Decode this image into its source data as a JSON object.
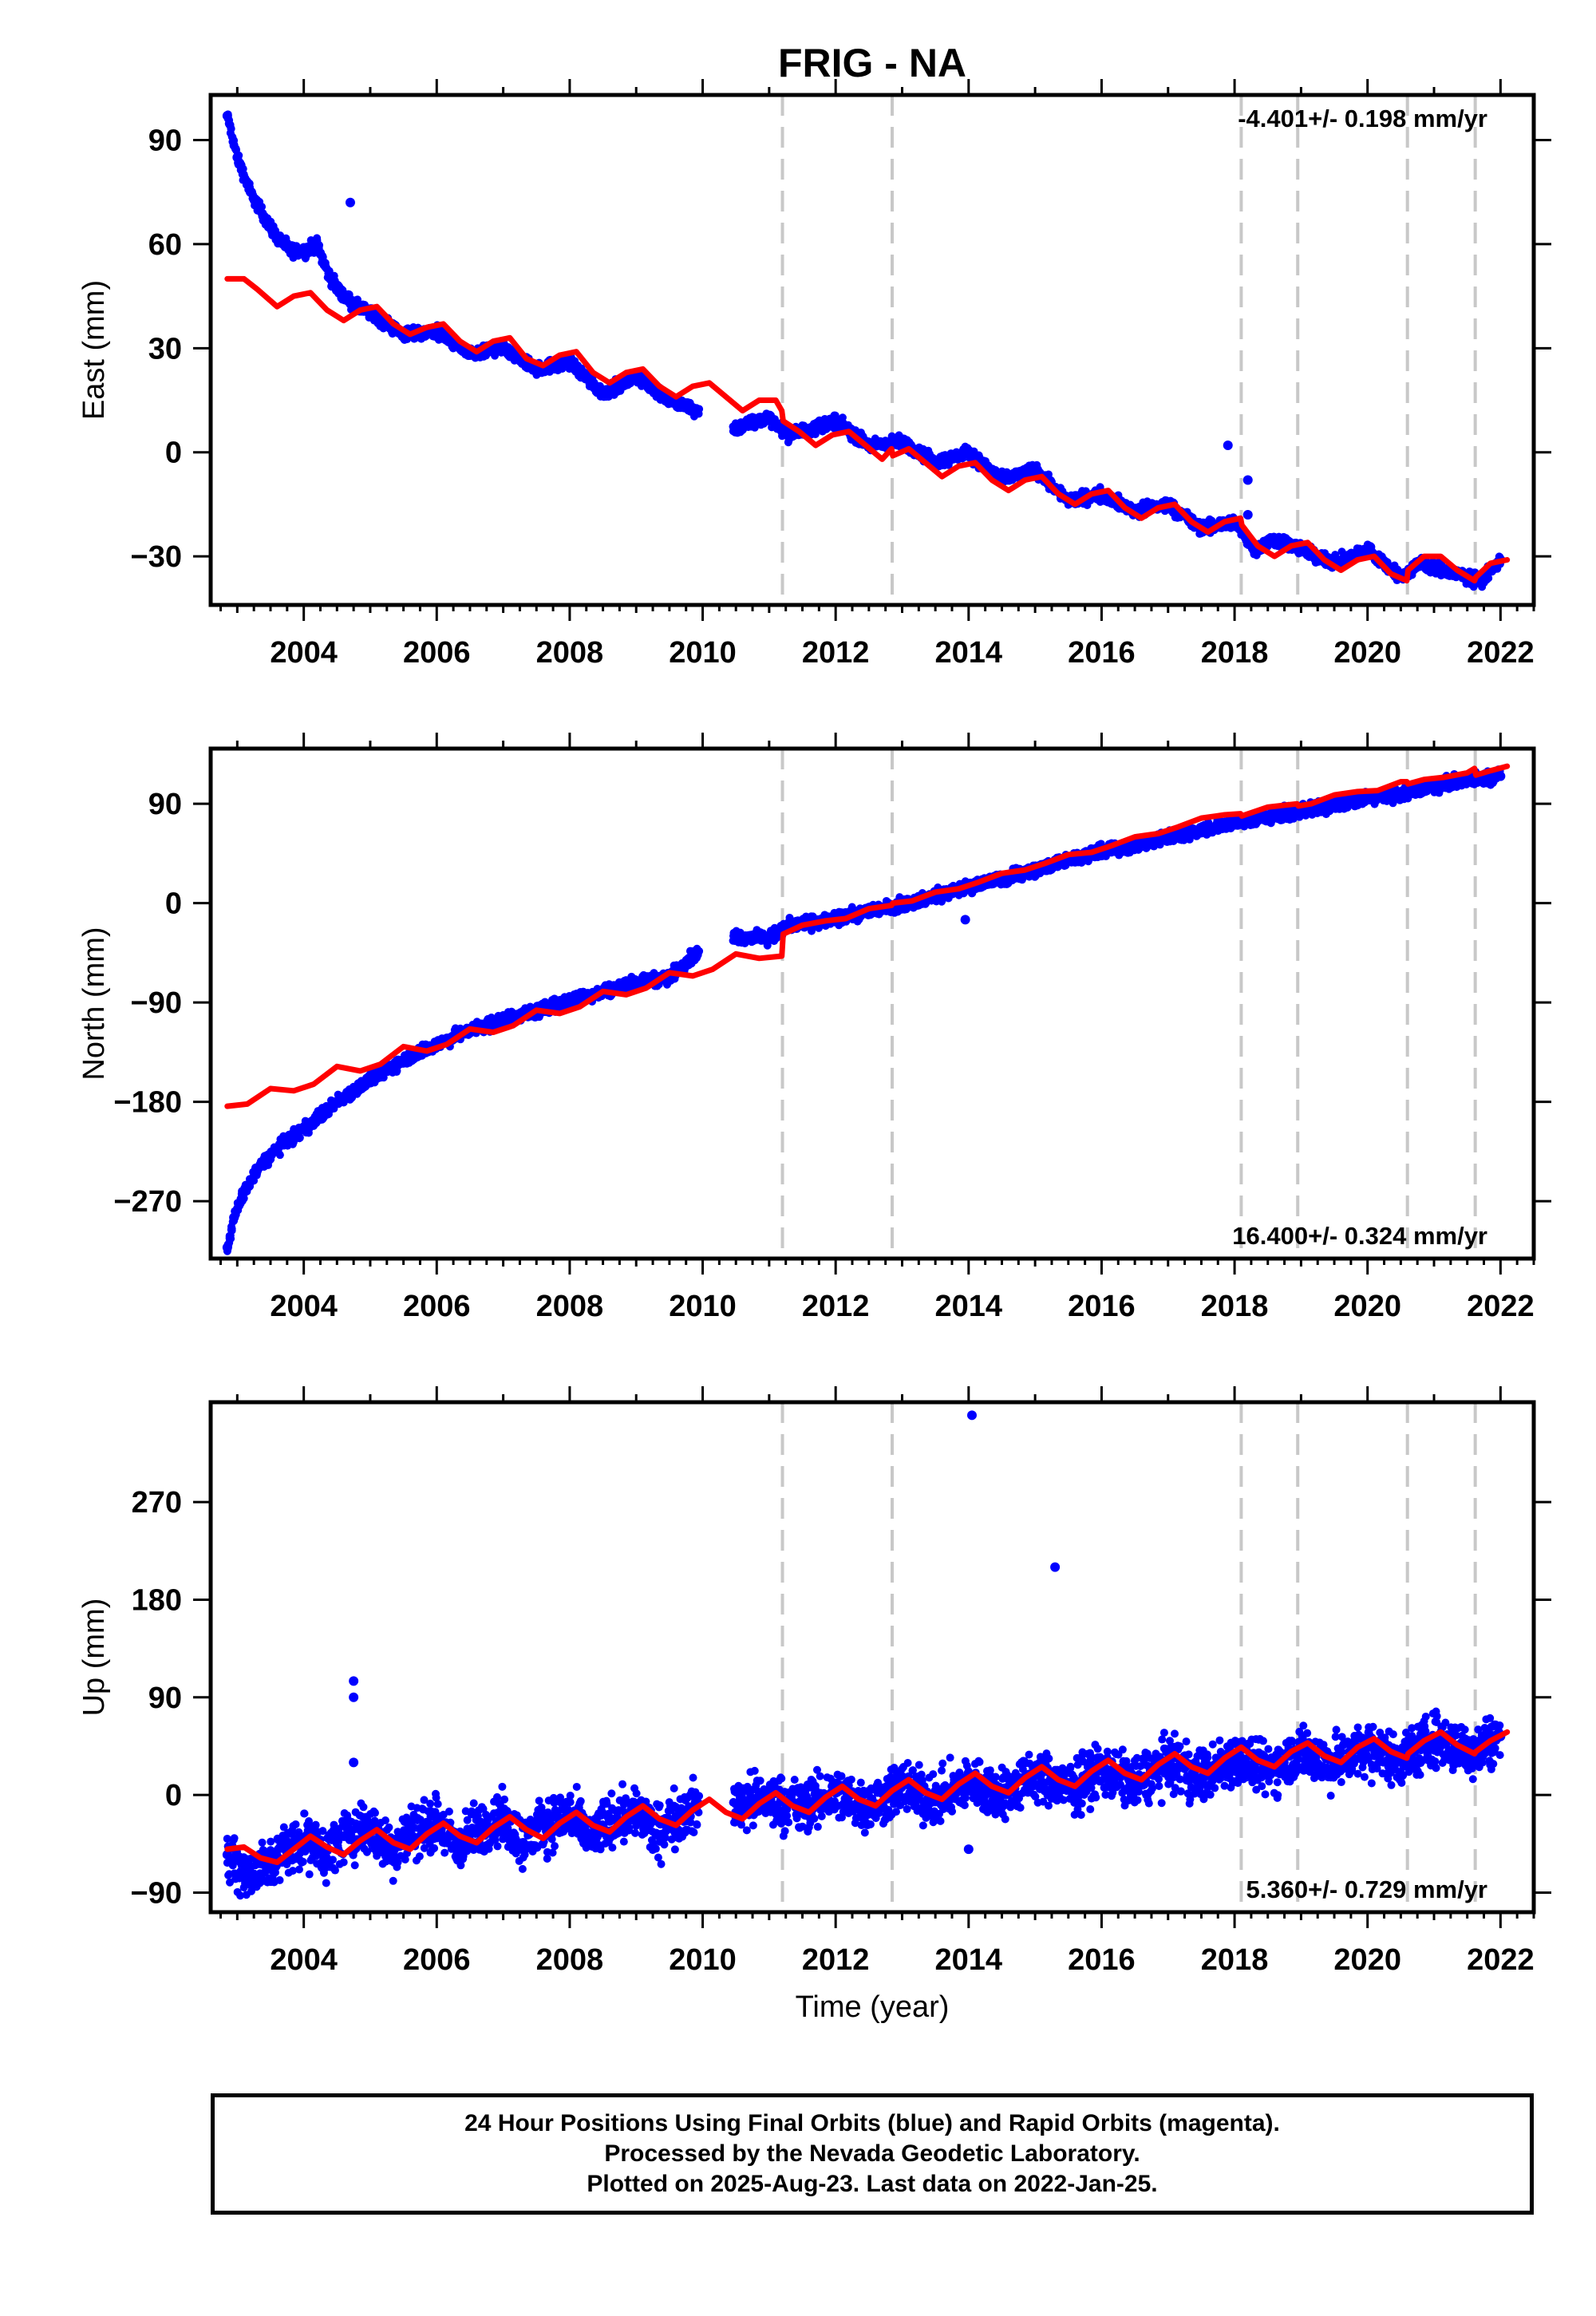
{
  "title": "FRIG - NA",
  "colors": {
    "data": "#0000ff",
    "model": "#ff0000",
    "offset": "#c8c8c8",
    "frame": "#000000"
  },
  "xlabel": "Time (year)",
  "footer": {
    "line1": "24 Hour Positions Using Final Orbits (blue) and Rapid Orbits (magenta).",
    "line2": "Processed by the Nevada Geodetic Laboratory.",
    "line3": "Plotted on 2025-Aug-23. Last data on 2022-Jan-25."
  },
  "chart_data": [
    {
      "type": "scatter",
      "ylabel": "East (mm)",
      "rate": "-4.401+/- 0.198 mm/yr",
      "rate_position": "top-right",
      "xlim": [
        2002.6,
        2022.5
      ],
      "ylim": [
        -44,
        103
      ],
      "x_ticks": [
        2004,
        2006,
        2008,
        2010,
        2012,
        2014,
        2016,
        2018,
        2020,
        2022
      ],
      "y_ticks": [
        90,
        60,
        30,
        0,
        -30
      ],
      "y_tick_labels": [
        "90",
        "60",
        "30",
        "0",
        "−30"
      ],
      "offset_epochs": [
        2011.2,
        2012.85,
        2018.1,
        2018.95,
        2020.6,
        2021.62
      ],
      "series": [
        {
          "kind": "observations",
          "x": [
            2002.85,
            2003.0,
            2003.2,
            2003.4,
            2003.6,
            2003.8,
            2004.0,
            2004.2,
            2004.4,
            2004.6,
            2004.8,
            2005.0,
            2005.5,
            2006.0,
            2006.5,
            2007.0,
            2007.5,
            2008.0,
            2008.5,
            2009.0,
            2009.5,
            2009.9,
            2010.5,
            2011.0,
            2011.3,
            2012.0,
            2012.5,
            2013.0,
            2013.5,
            2014.0,
            2014.5,
            2015.0,
            2015.5,
            2016.0,
            2016.5,
            2017.0,
            2017.5,
            2018.0,
            2018.3,
            2018.6,
            2019.0,
            2019.5,
            2020.0,
            2020.5,
            2020.8,
            2021.3,
            2021.7,
            2022.0
          ],
          "y": [
            97,
            85,
            75,
            68,
            62,
            58,
            58,
            60,
            50,
            45,
            42,
            40,
            34,
            35,
            28,
            30,
            24,
            26,
            17,
            22,
            15,
            12,
            7,
            10,
            5,
            9,
            2,
            3,
            -3,
            0,
            -8,
            -5,
            -14,
            -12,
            -17,
            -15,
            -22,
            -20,
            -28,
            -25,
            -28,
            -32,
            -28,
            -36,
            -32,
            -35,
            -37,
            -31
          ]
        },
        {
          "kind": "outliers",
          "x": [
            2004.7,
            2017.9,
            2018.2,
            2018.2
          ],
          "y": [
            72,
            2,
            -8,
            -18
          ]
        },
        {
          "kind": "model",
          "x": [
            2002.85,
            2003.1,
            2003.3,
            2003.6,
            2003.85,
            2004.1,
            2004.35,
            2004.6,
            2004.85,
            2005.1,
            2005.35,
            2005.6,
            2005.85,
            2006.1,
            2006.35,
            2006.6,
            2006.85,
            2007.1,
            2007.35,
            2007.6,
            2007.85,
            2008.1,
            2008.35,
            2008.6,
            2008.85,
            2009.1,
            2009.35,
            2009.6,
            2009.85,
            2010.1,
            2010.35,
            2010.6,
            2010.85,
            2011.1,
            2011.19,
            2011.21,
            2011.45,
            2011.7,
            2011.95,
            2012.2,
            2012.45,
            2012.7,
            2012.84,
            2012.86,
            2013.1,
            2013.35,
            2013.6,
            2013.85,
            2014.1,
            2014.35,
            2014.6,
            2014.85,
            2015.1,
            2015.35,
            2015.6,
            2015.85,
            2016.1,
            2016.35,
            2016.6,
            2016.85,
            2017.1,
            2017.35,
            2017.6,
            2017.85,
            2018.09,
            2018.11,
            2018.35,
            2018.6,
            2018.85,
            2019.1,
            2019.35,
            2019.6,
            2019.85,
            2020.1,
            2020.35,
            2020.59,
            2020.61,
            2020.85,
            2021.1,
            2021.35,
            2021.61,
            2021.63,
            2021.85,
            2022.1
          ],
          "y": [
            50,
            50,
            47,
            42,
            45,
            46,
            41,
            38,
            41,
            42,
            37,
            34,
            36,
            37,
            32,
            29,
            32,
            33,
            27,
            25,
            28,
            29,
            23,
            20,
            23,
            24,
            19,
            16,
            19,
            20,
            16,
            12,
            15,
            15,
            12,
            9,
            6,
            2,
            5,
            6,
            2,
            -2,
            1,
            -1,
            1,
            -3,
            -7,
            -4,
            -3,
            -8,
            -11,
            -8,
            -7,
            -12,
            -15,
            -12,
            -11,
            -16,
            -19,
            -16,
            -15,
            -20,
            -23,
            -20,
            -19,
            -21,
            -27,
            -30,
            -27,
            -26,
            -31,
            -34,
            -31,
            -30,
            -35,
            -37,
            -34,
            -30,
            -30,
            -34,
            -37,
            -36,
            -32,
            -31
          ]
        }
      ]
    },
    {
      "type": "scatter",
      "ylabel": "North (mm)",
      "rate": "16.400+/- 0.324 mm/yr",
      "rate_position": "bottom-right",
      "xlim": [
        2002.6,
        2022.5
      ],
      "ylim": [
        -322,
        140
      ],
      "x_ticks": [
        2004,
        2006,
        2008,
        2010,
        2012,
        2014,
        2016,
        2018,
        2020,
        2022
      ],
      "y_ticks": [
        90,
        0,
        -90,
        -180,
        -270
      ],
      "y_tick_labels": [
        "90",
        "0",
        "−90",
        "−180",
        "−270"
      ],
      "offset_epochs": [
        2011.2,
        2012.85,
        2018.1,
        2018.95,
        2020.6,
        2021.62
      ],
      "series": [
        {
          "kind": "observations",
          "x": [
            2002.85,
            2002.95,
            2003.1,
            2003.3,
            2003.6,
            2004.0,
            2004.5,
            2005.0,
            2005.5,
            2006.0,
            2006.5,
            2007.0,
            2007.5,
            2008.0,
            2008.5,
            2009.0,
            2009.5,
            2009.8,
            2010.5,
            2011.0,
            2011.3,
            2012.0,
            2012.5,
            2013.0,
            2013.5,
            2014.0,
            2014.5,
            2015.0,
            2015.5,
            2016.0,
            2016.5,
            2017.0,
            2017.5,
            2018.0,
            2018.5,
            2019.0,
            2019.5,
            2020.0,
            2020.5,
            2021.0,
            2021.5,
            2022.0
          ],
          "y": [
            -312,
            -285,
            -262,
            -242,
            -222,
            -205,
            -180,
            -160,
            -142,
            -128,
            -115,
            -105,
            -98,
            -88,
            -80,
            -72,
            -67,
            -50,
            -30,
            -32,
            -20,
            -15,
            -7,
            -1,
            6,
            15,
            22,
            30,
            40,
            47,
            52,
            60,
            66,
            73,
            78,
            84,
            88,
            95,
            99,
            106,
            112,
            115
          ]
        },
        {
          "kind": "outliers",
          "x": [
            2013.95,
            2015.8
          ],
          "y": [
            -15,
            40
          ]
        },
        {
          "kind": "model",
          "x": [
            2002.85,
            2003.15,
            2003.5,
            2003.85,
            2004.15,
            2004.5,
            2004.85,
            2005.15,
            2005.5,
            2005.85,
            2006.15,
            2006.5,
            2006.85,
            2007.15,
            2007.5,
            2007.85,
            2008.15,
            2008.5,
            2008.85,
            2009.15,
            2009.5,
            2009.85,
            2010.15,
            2010.5,
            2010.85,
            2011.19,
            2011.21,
            2011.5,
            2011.85,
            2012.15,
            2012.5,
            2012.84,
            2012.86,
            2013.15,
            2013.5,
            2013.85,
            2014.15,
            2014.5,
            2014.85,
            2015.15,
            2015.5,
            2015.85,
            2016.15,
            2016.5,
            2016.85,
            2017.15,
            2017.5,
            2017.85,
            2018.09,
            2018.11,
            2018.5,
            2018.94,
            2018.96,
            2019.15,
            2019.5,
            2019.85,
            2020.15,
            2020.5,
            2020.59,
            2020.61,
            2020.85,
            2021.15,
            2021.5,
            2021.61,
            2021.63,
            2021.85,
            2022.1
          ],
          "y": [
            -184,
            -182,
            -168,
            -170,
            -164,
            -148,
            -152,
            -146,
            -130,
            -134,
            -128,
            -114,
            -117,
            -111,
            -97,
            -100,
            -94,
            -80,
            -83,
            -77,
            -63,
            -66,
            -60,
            -46,
            -50,
            -48,
            -28,
            -20,
            -16,
            -14,
            -5,
            -2,
            0,
            2,
            10,
            13,
            19,
            27,
            30,
            36,
            44,
            46,
            52,
            60,
            63,
            69,
            77,
            80,
            81,
            79,
            87,
            90,
            88,
            90,
            98,
            101,
            102,
            110,
            110,
            108,
            112,
            114,
            118,
            122,
            116,
            120,
            124
          ]
        }
      ]
    },
    {
      "type": "scatter",
      "ylabel": "Up (mm)",
      "rate": "5.360+/- 0.729 mm/yr",
      "rate_position": "bottom-right",
      "xlim": [
        2002.6,
        2022.5
      ],
      "ylim": [
        -108,
        362
      ],
      "x_ticks": [
        2004,
        2006,
        2008,
        2010,
        2012,
        2014,
        2016,
        2018,
        2020,
        2022
      ],
      "y_ticks": [
        270,
        180,
        90,
        0,
        -90
      ],
      "y_tick_labels": [
        "270",
        "180",
        "90",
        "0",
        "−90"
      ],
      "offset_epochs": [
        2011.2,
        2012.85,
        2018.1,
        2018.95,
        2020.6,
        2021.62
      ],
      "series": [
        {
          "kind": "observations",
          "x": [
            2002.85,
            2003.2,
            2003.5,
            2003.8,
            2004.0,
            2004.3,
            2004.6,
            2005.0,
            2005.3,
            2005.6,
            2006.0,
            2006.3,
            2006.6,
            2007.0,
            2007.3,
            2007.6,
            2008.0,
            2008.3,
            2008.6,
            2009.0,
            2009.3,
            2009.6,
            2009.9,
            2010.5,
            2011.0,
            2011.5,
            2012.0,
            2012.5,
            2013.0,
            2013.5,
            2014.0,
            2014.5,
            2015.0,
            2015.5,
            2016.0,
            2016.5,
            2017.0,
            2017.5,
            2018.0,
            2018.5,
            2019.0,
            2019.5,
            2020.0,
            2020.5,
            2021.0,
            2021.5,
            2022.0
          ],
          "y": [
            -55,
            -75,
            -62,
            -48,
            -40,
            -55,
            -38,
            -30,
            -52,
            -35,
            -25,
            -48,
            -32,
            -22,
            -44,
            -28,
            -18,
            -40,
            -24,
            -14,
            -36,
            -20,
            -12,
            -8,
            -4,
            -12,
            2,
            -10,
            8,
            -6,
            12,
            0,
            18,
            5,
            24,
            10,
            30,
            16,
            34,
            22,
            40,
            28,
            44,
            32,
            52,
            40,
            54
          ]
        },
        {
          "kind": "outliers",
          "x": [
            2004.75,
            2004.75,
            2004.75,
            2014.05,
            2015.3,
            2014.0
          ],
          "y": [
            105,
            90,
            30,
            350,
            210,
            -50
          ]
        },
        {
          "kind": "model",
          "x": [
            2002.85,
            2003.1,
            2003.35,
            2003.6,
            2003.85,
            2004.1,
            2004.35,
            2004.6,
            2004.85,
            2005.1,
            2005.35,
            2005.6,
            2005.85,
            2006.1,
            2006.35,
            2006.6,
            2006.85,
            2007.1,
            2007.35,
            2007.6,
            2007.85,
            2008.1,
            2008.35,
            2008.6,
            2008.85,
            2009.1,
            2009.35,
            2009.6,
            2009.85,
            2010.1,
            2010.35,
            2010.6,
            2010.85,
            2011.1,
            2011.35,
            2011.6,
            2011.85,
            2012.1,
            2012.35,
            2012.6,
            2012.85,
            2013.1,
            2013.35,
            2013.6,
            2013.85,
            2014.1,
            2014.35,
            2014.6,
            2014.85,
            2015.1,
            2015.35,
            2015.6,
            2015.85,
            2016.1,
            2016.35,
            2016.6,
            2016.85,
            2017.1,
            2017.35,
            2017.6,
            2017.85,
            2018.1,
            2018.35,
            2018.6,
            2018.85,
            2019.1,
            2019.35,
            2019.6,
            2019.85,
            2020.1,
            2020.35,
            2020.59,
            2020.61,
            2020.85,
            2021.1,
            2021.35,
            2021.61,
            2021.63,
            2021.85,
            2022.1
          ],
          "y": [
            -50,
            -48,
            -58,
            -62,
            -50,
            -38,
            -48,
            -55,
            -42,
            -32,
            -44,
            -50,
            -36,
            -26,
            -38,
            -44,
            -30,
            -20,
            -32,
            -40,
            -26,
            -16,
            -28,
            -34,
            -20,
            -10,
            -22,
            -28,
            -14,
            -4,
            -16,
            -22,
            -8,
            2,
            -10,
            -16,
            -2,
            8,
            -4,
            -10,
            4,
            14,
            2,
            -4,
            10,
            20,
            8,
            2,
            16,
            26,
            14,
            8,
            22,
            32,
            20,
            14,
            28,
            38,
            26,
            20,
            34,
            44,
            32,
            26,
            40,
            48,
            36,
            30,
            44,
            52,
            40,
            34,
            38,
            50,
            58,
            46,
            38,
            40,
            50,
            58
          ]
        }
      ]
    }
  ]
}
